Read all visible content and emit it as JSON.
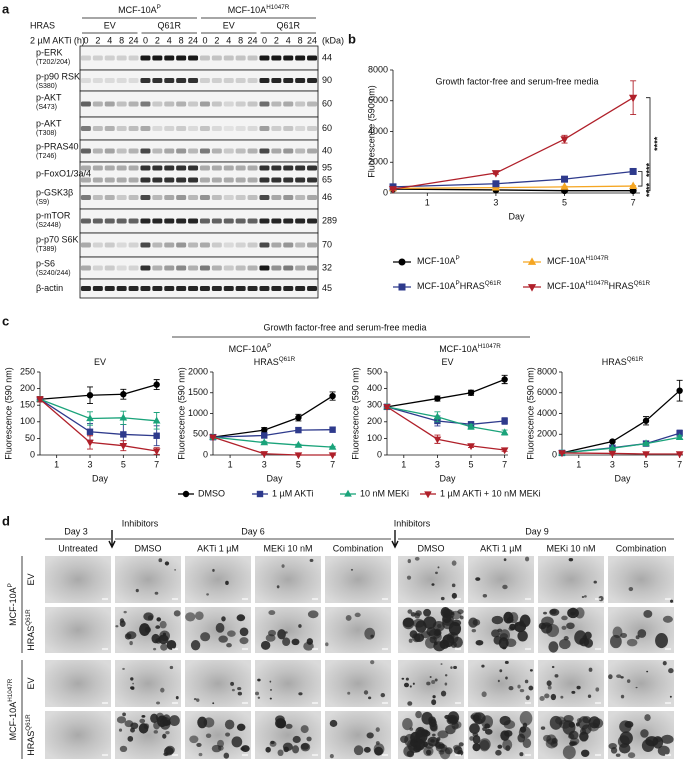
{
  "panel_labels": [
    "a",
    "b",
    "c",
    "d"
  ],
  "blot": {
    "hras_label": "HRAS",
    "akti_label": "2 µM AKTi (h)",
    "kda_label": "(kDa)",
    "cell_lines": [
      {
        "text": "MCF-10A",
        "sup": "P"
      },
      {
        "text": "MCF-10A",
        "sup": "H1047R"
      }
    ],
    "groups": [
      "EV",
      "Q61R",
      "EV",
      "Q61R"
    ],
    "timepoints": [
      0,
      2,
      4,
      8,
      24
    ],
    "rows": [
      {
        "label": "p-ERK",
        "site": "(T202/204)",
        "kda": [
          44
        ]
      },
      {
        "label": "p-p90 RSK",
        "site": "(S380)",
        "kda": [
          90
        ]
      },
      {
        "label": "p-AKT",
        "site": "(S473)",
        "kda": [
          60
        ]
      },
      {
        "label": "p-AKT",
        "site": "(T308)",
        "kda": [
          60
        ]
      },
      {
        "label": "p-PRAS40",
        "site": "(T246)",
        "kda": [
          40
        ]
      },
      {
        "label": "p-FoxO1/3a/4",
        "kda": [
          95,
          65
        ]
      },
      {
        "label": "p-GSK3β",
        "site": "(S9)",
        "kda": [
          46
        ]
      },
      {
        "label": "p-mTOR",
        "site": "(S2448)",
        "kda": [
          289
        ]
      },
      {
        "label": "p-p70 S6K",
        "site": "(T389)",
        "kda": [
          70
        ]
      },
      {
        "label": "p-S6",
        "site": "(S240/244)",
        "kda": [
          32
        ]
      },
      {
        "label": "β-actin",
        "kda": [
          45
        ]
      }
    ]
  },
  "chart_data": [
    {
      "type": "line",
      "title": "Growth factor-free and serum-free media",
      "x_label": "Day",
      "y_label": "Fluorescence (590 nm)",
      "x": [
        0,
        3,
        5,
        7
      ],
      "xlim": [
        0,
        7.2
      ],
      "xticks": [
        1,
        3,
        5,
        7
      ],
      "ylim": [
        0,
        8000
      ],
      "yticks": [
        0,
        2000,
        4000,
        6000,
        8000
      ],
      "series": [
        {
          "name": [
            {
              "text": "MCF-10A",
              "sup": "P"
            }
          ],
          "color": "#000000",
          "marker": "circle",
          "values": [
            250,
            200,
            150,
            150
          ],
          "errors": [
            30,
            30,
            30,
            40
          ]
        },
        {
          "name": [
            {
              "text": "MCF-10A",
              "sup": "H1047R"
            }
          ],
          "color": "#f5a623",
          "marker": "triangle-up",
          "values": [
            300,
            350,
            400,
            450
          ],
          "errors": [
            30,
            30,
            40,
            40
          ]
        },
        {
          "name": [
            {
              "text": "MCF-10A",
              "sup": "P"
            },
            {
              "text": "HRAS",
              "sup": "Q61R"
            }
          ],
          "color": "#2e3a8c",
          "marker": "square",
          "values": [
            400,
            600,
            900,
            1400
          ],
          "errors": [
            40,
            50,
            80,
            100
          ]
        },
        {
          "name": [
            {
              "text": "MCF-10A",
              "sup": "H1047R"
            },
            {
              "text": "HRAS",
              "sup": "Q61R"
            }
          ],
          "color": "#b0202a",
          "marker": "triangle-down",
          "values": [
            250,
            1300,
            3500,
            6200
          ],
          "errors": [
            30,
            80,
            250,
            1100
          ]
        }
      ],
      "annotations": [
        "****",
        "****",
        "****"
      ]
    },
    {
      "type": "line",
      "title": {
        "text": "EV"
      },
      "x_label": "Day",
      "y_label": "Fluorescence (590 nm)",
      "x": [
        0,
        3,
        5,
        7
      ],
      "xlim": [
        0,
        7.2
      ],
      "xticks": [
        1,
        3,
        5,
        7
      ],
      "ylim": [
        0,
        250
      ],
      "yticks": [
        0,
        50,
        100,
        150,
        200,
        250
      ],
      "series": [
        {
          "name": "DMSO",
          "color": "#000000",
          "marker": "circle",
          "values": [
            168,
            180,
            183,
            212
          ],
          "errors": [
            8,
            25,
            15,
            15
          ]
        },
        {
          "name": "1 µM AKTi",
          "color": "#2e3a8c",
          "marker": "square",
          "values": [
            168,
            70,
            62,
            58
          ],
          "errors": [
            8,
            25,
            30,
            30
          ]
        },
        {
          "name": "10 nM MEKi",
          "color": "#1aa37a",
          "marker": "triangle-up",
          "values": [
            168,
            110,
            112,
            103
          ],
          "errors": [
            8,
            20,
            20,
            25
          ]
        },
        {
          "name": "1 µM AKTi + 10 nM MEKi",
          "color": "#b0202a",
          "marker": "triangle-down",
          "values": [
            168,
            38,
            28,
            12
          ],
          "errors": [
            8,
            20,
            15,
            10
          ]
        }
      ]
    },
    {
      "type": "line",
      "title": {
        "text": "HRAS",
        "sup": "Q61R"
      },
      "x_label": "Day",
      "y_label": "Fluorescence (590 nm)",
      "x": [
        0,
        3,
        5,
        7
      ],
      "xlim": [
        0,
        7.2
      ],
      "xticks": [
        1,
        3,
        5,
        7
      ],
      "ylim": [
        0,
        2000
      ],
      "yticks": [
        0,
        500,
        1000,
        1500,
        2000
      ],
      "series": [
        {
          "color": "#000000",
          "marker": "circle",
          "values": [
            430,
            600,
            900,
            1420
          ],
          "errors": [
            20,
            60,
            80,
            100
          ]
        },
        {
          "color": "#2e3a8c",
          "marker": "square",
          "values": [
            430,
            470,
            600,
            610
          ],
          "errors": [
            20,
            40,
            60,
            60
          ]
        },
        {
          "color": "#1aa37a",
          "marker": "triangle-up",
          "values": [
            430,
            300,
            240,
            190
          ],
          "errors": [
            20,
            30,
            20,
            20
          ]
        },
        {
          "color": "#b0202a",
          "marker": "triangle-down",
          "values": [
            430,
            30,
            0,
            0
          ],
          "errors": [
            20,
            10,
            5,
            5
          ]
        }
      ]
    },
    {
      "type": "line",
      "title": {
        "text": "EV"
      },
      "x_label": "Day",
      "y_label": "Fluorescence (590 nm)",
      "x": [
        0,
        3,
        5,
        7
      ],
      "xlim": [
        0,
        7.2
      ],
      "xticks": [
        1,
        3,
        5,
        7
      ],
      "ylim": [
        0,
        500
      ],
      "yticks": [
        0,
        100,
        200,
        300,
        400,
        500
      ],
      "series": [
        {
          "color": "#000000",
          "marker": "circle",
          "values": [
            290,
            340,
            375,
            455
          ],
          "errors": [
            10,
            15,
            15,
            25
          ]
        },
        {
          "color": "#2e3a8c",
          "marker": "square",
          "values": [
            290,
            205,
            185,
            205
          ],
          "errors": [
            10,
            30,
            15,
            20
          ]
        },
        {
          "color": "#1aa37a",
          "marker": "triangle-up",
          "values": [
            290,
            230,
            170,
            135
          ],
          "errors": [
            10,
            30,
            15,
            15
          ]
        },
        {
          "color": "#b0202a",
          "marker": "triangle-down",
          "values": [
            290,
            95,
            55,
            30
          ],
          "errors": [
            10,
            25,
            10,
            8
          ]
        }
      ]
    },
    {
      "type": "line",
      "title": {
        "text": "HRAS",
        "sup": "Q61R"
      },
      "x_label": "Day",
      "y_label": "Fluorescence (590 nm)",
      "x": [
        0,
        3,
        5,
        7
      ],
      "xlim": [
        0,
        7.2
      ],
      "xticks": [
        1,
        3,
        5,
        7
      ],
      "ylim": [
        0,
        8000
      ],
      "yticks": [
        0,
        2000,
        4000,
        6000,
        8000
      ],
      "series": [
        {
          "color": "#000000",
          "marker": "circle",
          "values": [
            200,
            1300,
            3300,
            6200
          ],
          "errors": [
            50,
            100,
            400,
            1000
          ]
        },
        {
          "color": "#2e3a8c",
          "marker": "square",
          "values": [
            200,
            700,
            1100,
            2100
          ],
          "errors": [
            50,
            80,
            100,
            300
          ]
        },
        {
          "color": "#1aa37a",
          "marker": "triangle-up",
          "values": [
            200,
            650,
            1100,
            1700
          ],
          "errors": [
            50,
            80,
            100,
            200
          ]
        },
        {
          "color": "#b0202a",
          "marker": "triangle-down",
          "values": [
            200,
            150,
            100,
            100
          ],
          "errors": [
            50,
            30,
            30,
            30
          ]
        }
      ]
    }
  ],
  "panel_c": {
    "title": "Growth factor-free and serum-free media",
    "groups": [
      {
        "text": "MCF-10A",
        "sup": "P"
      },
      {
        "text": "MCF-10A",
        "sup": "H1047R"
      }
    ]
  },
  "panel_d": {
    "days": [
      "Day 3",
      "Day 6",
      "Day 9"
    ],
    "inhibitors_label": "Inhibitors",
    "columns": [
      "Untreated",
      "DMSO",
      "AKTi 1 µM",
      "MEKi 10 nM",
      "Combination"
    ],
    "cell_lines": [
      {
        "text": "MCF-10A",
        "sup": "P"
      },
      {
        "text": "MCF-10A",
        "sup": "H1047R"
      }
    ],
    "rows": [
      {
        "text": "EV"
      },
      {
        "text": "HRAS",
        "sup": "Q61R"
      }
    ]
  }
}
